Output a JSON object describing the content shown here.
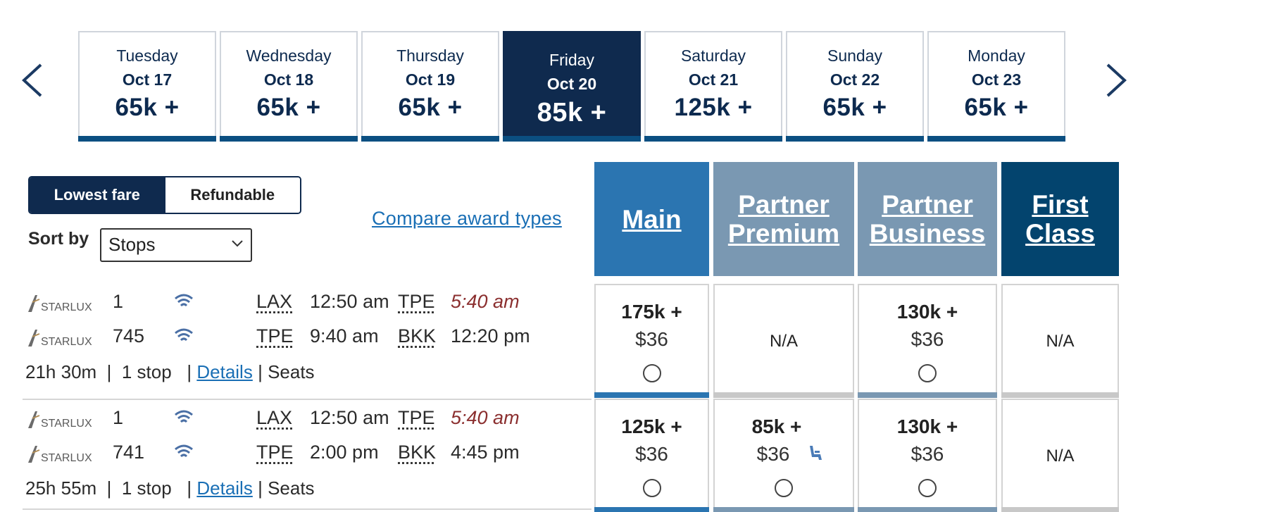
{
  "date_nav": {
    "prev_icon": "chevron-left-icon",
    "next_icon": "chevron-right-icon",
    "dates": [
      {
        "day": "Tuesday",
        "date": "Oct 17",
        "price": "65k +",
        "selected": false
      },
      {
        "day": "Wednesday",
        "date": "Oct 18",
        "price": "65k +",
        "selected": false
      },
      {
        "day": "Thursday",
        "date": "Oct 19",
        "price": "65k +",
        "selected": false
      },
      {
        "day": "Friday",
        "date": "Oct 20",
        "price": "85k +",
        "selected": true
      },
      {
        "day": "Saturday",
        "date": "Oct 21",
        "price": "125k +",
        "selected": false
      },
      {
        "day": "Sunday",
        "date": "Oct 22",
        "price": "65k +",
        "selected": false
      },
      {
        "day": "Monday",
        "date": "Oct 23",
        "price": "65k +",
        "selected": false
      }
    ]
  },
  "fare_toggle": {
    "lowest": "Lowest fare",
    "refundable": "Refundable",
    "active": "lowest"
  },
  "sort": {
    "label": "Sort by",
    "value": "Stops"
  },
  "compare_link": "Compare award types",
  "cabins": {
    "main": {
      "line1": "Main",
      "line2": "",
      "color": "#2b75b1"
    },
    "partner_premium": {
      "line1": "Partner",
      "line2": "Premium",
      "color": "#7a98b2"
    },
    "partner_business": {
      "line1": "Partner",
      "line2": "Business",
      "color": "#7a98b2"
    },
    "first": {
      "line1": "First",
      "line2": "Class",
      "color": "#03446e"
    }
  },
  "flights": [
    {
      "segments": [
        {
          "airline": "STARLUX",
          "flight": "1",
          "from": "LAX",
          "depart": "12:50 am",
          "to": "TPE",
          "arrive": "5:40 am",
          "arrive_next_day": true
        },
        {
          "airline": "STARLUX",
          "flight": "745",
          "from": "TPE",
          "depart": "9:40 am",
          "to": "BKK",
          "arrive": "12:20 pm",
          "arrive_next_day": false
        }
      ],
      "duration": "21h 30m",
      "stops": "1 stop",
      "details": "Details",
      "seats": "Seats",
      "fares": {
        "main": {
          "miles": "175k +",
          "tax": "$36"
        },
        "partner_premium": {
          "na": "N/A"
        },
        "partner_business": {
          "miles": "130k +",
          "tax": "$36"
        },
        "first": {
          "na": "N/A"
        }
      }
    },
    {
      "segments": [
        {
          "airline": "STARLUX",
          "flight": "1",
          "from": "LAX",
          "depart": "12:50 am",
          "to": "TPE",
          "arrive": "5:40 am",
          "arrive_next_day": true
        },
        {
          "airline": "STARLUX",
          "flight": "741",
          "from": "TPE",
          "depart": "2:00 pm",
          "to": "BKK",
          "arrive": "4:45 pm",
          "arrive_next_day": false
        }
      ],
      "duration": "25h 55m",
      "stops": "1 stop",
      "details": "Details",
      "seats": "Seats",
      "fares": {
        "main": {
          "miles": "125k +",
          "tax": "$36"
        },
        "partner_premium": {
          "miles": "85k +",
          "tax": "$36",
          "icon": "seat-icon"
        },
        "partner_business": {
          "miles": "130k +",
          "tax": "$36"
        },
        "first": {
          "na": "N/A"
        }
      }
    }
  ]
}
